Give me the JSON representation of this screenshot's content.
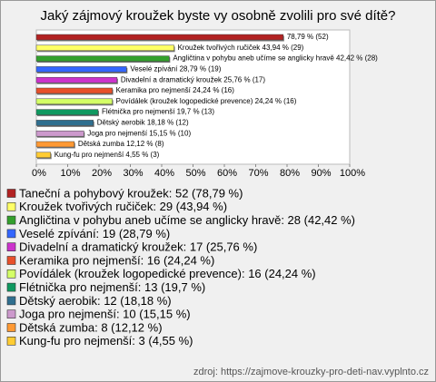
{
  "chart_data": {
    "type": "bar",
    "orientation": "horizontal",
    "title": "Jaký zájmový kroužek byste vy osobně zvolili pro své dítě?",
    "categories": [
      "Taneční a pohybový kroužek",
      "Kroužek tvořivých ručiček",
      "Angličtina v pohybu aneb učíme se anglicky hravě",
      "Veselé zpívání",
      "Divadelní a dramatický kroužek",
      "Keramika pro nejmenší",
      "Povídálek (kroužek logopedické prevence)",
      "Flétnička pro nejmenší",
      "Dětský aerobik",
      "Joga pro nejmenší",
      "Dětská zumba",
      "Kung-fu pro nejmenší"
    ],
    "values": [
      78.79,
      43.94,
      42.42,
      28.79,
      25.76,
      24.24,
      24.24,
      19.7,
      18.18,
      15.15,
      12.12,
      4.55
    ],
    "value_labels": [
      "78,79 % (52)",
      "Kroužek tvořivých ručiček 43,94 % (29)",
      "Angličtina v pohybu aneb učíme se anglicky hravě 42,42 % (28)",
      "Veselé zpívání 28,79 % (19)",
      "Divadelní a dramatický kroužek 25,76 % (17)",
      "Keramika pro nejmenší 24,24 % (16)",
      "Povídálek (kroužek logopedické prevence) 24,24 % (16)",
      "Flétnička pro nejmenší 19,7 % (13)",
      "Dětský aerobik 18,18 % (12)",
      "Joga pro nejmenší 15,15 % (10)",
      "Dětská zumba 12,12 % (8)",
      "Kung-fu pro nejmenší 4,55 % (3)"
    ],
    "colors": [
      "#b22222",
      "#ffff66",
      "#33a02c",
      "#3366ff",
      "#cc33cc",
      "#e8502a",
      "#d4ff66",
      "#0f9960",
      "#2f6f8f",
      "#cc99cc",
      "#ff9933",
      "#ffcc33"
    ],
    "legend_labels": [
      "Taneční a pohybový kroužek: 52 (78,79 %)",
      "Kroužek tvořivých ručiček: 29 (43,94 %)",
      "Angličtina v pohybu aneb učíme se anglicky hravě: 28 (42,42 %)",
      "Veselé zpívání: 19 (28,79 %)",
      "Divadelní a dramatický kroužek: 17 (25,76 %)",
      "Keramika pro nejmenší: 16 (24,24 %)",
      "Povídálek (kroužek logopedické prevence): 16 (24,24 %)",
      "Flétnička pro nejmenší: 13 (19,7 %)",
      "Dětský aerobik: 12 (18,18 %)",
      "Joga pro nejmenší: 10 (15,15 %)",
      "Dětská zumba: 8 (12,12 %)",
      "Kung-fu pro nejmenší: 3 (4,55 %)"
    ],
    "xlim": [
      0,
      100
    ],
    "xticks": [
      {
        "value": 0,
        "label": "0%"
      },
      {
        "value": 10,
        "label": "10%"
      },
      {
        "value": 20,
        "label": "20%"
      },
      {
        "value": 30,
        "label": "30%"
      },
      {
        "value": 40,
        "label": "40%"
      },
      {
        "value": 50,
        "label": "50%"
      },
      {
        "value": 60,
        "label": "60%"
      },
      {
        "value": 70,
        "label": "70%"
      },
      {
        "value": 80,
        "label": "80%"
      },
      {
        "value": 90,
        "label": "90%"
      },
      {
        "value": 100,
        "label": "100%"
      }
    ],
    "source": "zdroj: https://zajmove-krouzky-pro-deti-nav.vyplnto.cz"
  }
}
